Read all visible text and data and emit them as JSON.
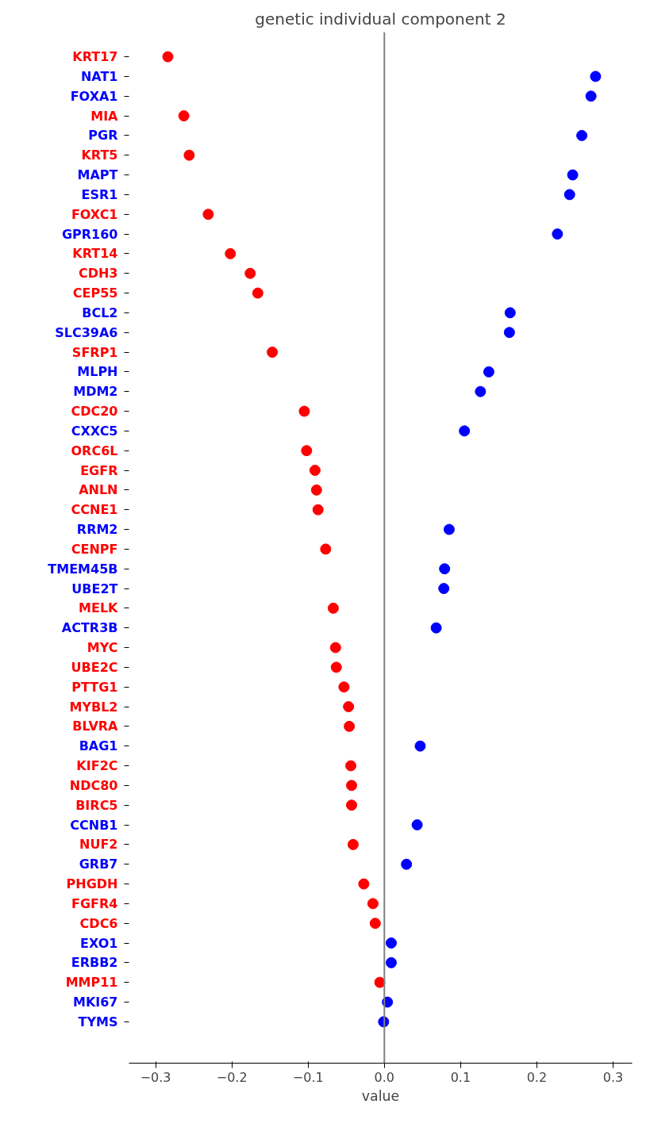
{
  "chart_data": {
    "type": "scatter",
    "orientation": "horizontal",
    "title": "genetic individual component 2",
    "xlabel": "value",
    "categories": [
      "KRT17",
      "NAT1",
      "FOXA1",
      "MIA",
      "PGR",
      "KRT5",
      "MAPT",
      "ESR1",
      "FOXC1",
      "GPR160",
      "KRT14",
      "CDH3",
      "CEP55",
      "BCL2",
      "SLC39A6",
      "SFRP1",
      "MLPH",
      "MDM2",
      "CDC20",
      "CXXC5",
      "ORC6L",
      "EGFR",
      "ANLN",
      "CCNE1",
      "RRM2",
      "CENPF",
      "TMEM45B",
      "UBE2T",
      "MELK",
      "ACTR3B",
      "MYC",
      "UBE2C",
      "PTTG1",
      "MYBL2",
      "BLVRA",
      "BAG1",
      "KIF2C",
      "NDC80",
      "BIRC5",
      "CCNB1",
      "NUF2",
      "GRB7",
      "PHGDH",
      "FGFR4",
      "CDC6",
      "EXO1",
      "ERBB2",
      "MMP11",
      "MKI67",
      "TYMS"
    ],
    "values": [
      -0.284,
      0.277,
      0.271,
      -0.263,
      0.259,
      -0.256,
      0.247,
      0.243,
      -0.231,
      0.227,
      -0.202,
      -0.176,
      -0.166,
      0.165,
      0.164,
      -0.147,
      0.137,
      0.126,
      -0.105,
      0.105,
      -0.102,
      -0.091,
      -0.089,
      -0.087,
      0.085,
      -0.077,
      0.079,
      0.078,
      -0.067,
      0.068,
      -0.064,
      -0.063,
      -0.053,
      -0.047,
      -0.046,
      0.047,
      -0.044,
      -0.043,
      -0.043,
      0.043,
      -0.041,
      0.029,
      -0.027,
      -0.015,
      -0.012,
      0.009,
      0.009,
      -0.006,
      0.004,
      -0.001
    ],
    "colors": [
      "#ff0000",
      "#0000ff",
      "#0000ff",
      "#ff0000",
      "#0000ff",
      "#ff0000",
      "#0000ff",
      "#0000ff",
      "#ff0000",
      "#0000ff",
      "#ff0000",
      "#ff0000",
      "#ff0000",
      "#0000ff",
      "#0000ff",
      "#ff0000",
      "#0000ff",
      "#0000ff",
      "#ff0000",
      "#0000ff",
      "#ff0000",
      "#ff0000",
      "#ff0000",
      "#ff0000",
      "#0000ff",
      "#ff0000",
      "#0000ff",
      "#0000ff",
      "#ff0000",
      "#0000ff",
      "#ff0000",
      "#ff0000",
      "#ff0000",
      "#ff0000",
      "#ff0000",
      "#0000ff",
      "#ff0000",
      "#ff0000",
      "#ff0000",
      "#0000ff",
      "#ff0000",
      "#0000ff",
      "#ff0000",
      "#ff0000",
      "#ff0000",
      "#0000ff",
      "#0000ff",
      "#ff0000",
      "#0000ff",
      "#0000ff"
    ],
    "xlim": [
      -0.335,
      0.325
    ],
    "xticks": [
      -0.3,
      -0.2,
      -0.1,
      {
        "value": 0,
        "label": "0.0"
      },
      0.1,
      0.2,
      0.3
    ],
    "ref_lines": [
      {
        "axis": "x",
        "value": 0,
        "color": "#808080"
      }
    ],
    "marker": "circle",
    "grid": false
  }
}
